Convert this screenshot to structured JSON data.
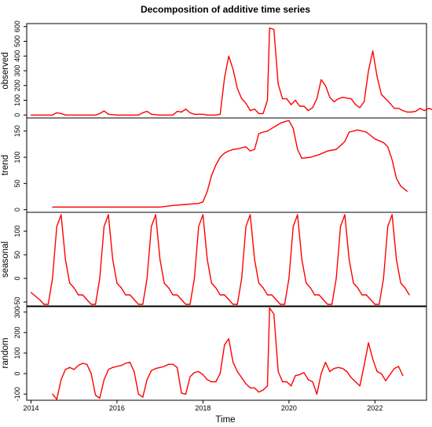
{
  "chart_data": {
    "type": "line",
    "title": "Decomposition of additive time series",
    "xlabel": "Time",
    "xlim": [
      2013.9,
      2023.2
    ],
    "xticks": [
      2014,
      2016,
      2018,
      2020,
      2022
    ],
    "panels": [
      {
        "name": "observed",
        "ylabel": "observed",
        "ylim": [
          -20,
          620
        ],
        "yticks": [
          0,
          100,
          200,
          300,
          400,
          500,
          600
        ],
        "points": [
          [
            2014.0,
            0
          ],
          [
            2014.5,
            0
          ],
          [
            2014.6,
            15
          ],
          [
            2014.7,
            10
          ],
          [
            2014.8,
            0
          ],
          [
            2015.0,
            0
          ],
          [
            2015.5,
            0
          ],
          [
            2015.6,
            10
          ],
          [
            2015.7,
            28
          ],
          [
            2015.8,
            5
          ],
          [
            2016.0,
            0
          ],
          [
            2016.5,
            0
          ],
          [
            2016.6,
            15
          ],
          [
            2016.7,
            25
          ],
          [
            2016.8,
            5
          ],
          [
            2017.0,
            0
          ],
          [
            2017.3,
            0
          ],
          [
            2017.4,
            25
          ],
          [
            2017.5,
            20
          ],
          [
            2017.6,
            40
          ],
          [
            2017.7,
            15
          ],
          [
            2017.8,
            5
          ],
          [
            2018.0,
            5
          ],
          [
            2018.1,
            0
          ],
          [
            2018.3,
            0
          ],
          [
            2018.4,
            5
          ],
          [
            2018.5,
            250
          ],
          [
            2018.6,
            400
          ],
          [
            2018.7,
            310
          ],
          [
            2018.8,
            180
          ],
          [
            2018.9,
            110
          ],
          [
            2019.0,
            80
          ],
          [
            2019.1,
            30
          ],
          [
            2019.2,
            40
          ],
          [
            2019.3,
            10
          ],
          [
            2019.4,
            10
          ],
          [
            2019.5,
            100
          ],
          [
            2019.55,
            590
          ],
          [
            2019.65,
            580
          ],
          [
            2019.75,
            210
          ],
          [
            2019.85,
            110
          ],
          [
            2019.95,
            110
          ],
          [
            2020.05,
            70
          ],
          [
            2020.15,
            100
          ],
          [
            2020.25,
            60
          ],
          [
            2020.35,
            60
          ],
          [
            2020.45,
            30
          ],
          [
            2020.55,
            50
          ],
          [
            2020.65,
            110
          ],
          [
            2020.75,
            240
          ],
          [
            2020.85,
            200
          ],
          [
            2020.95,
            120
          ],
          [
            2021.05,
            90
          ],
          [
            2021.15,
            110
          ],
          [
            2021.25,
            120
          ],
          [
            2021.35,
            115
          ],
          [
            2021.45,
            110
          ],
          [
            2021.55,
            70
          ],
          [
            2021.65,
            50
          ],
          [
            2021.75,
            90
          ],
          [
            2021.85,
            300
          ],
          [
            2021.95,
            435
          ],
          [
            2022.05,
            260
          ],
          [
            2022.15,
            140
          ],
          [
            2022.25,
            110
          ],
          [
            2022.35,
            80
          ],
          [
            2022.45,
            45
          ],
          [
            2022.55,
            45
          ],
          [
            2022.65,
            30
          ],
          [
            2022.75,
            20
          ],
          [
            2022.85,
            20
          ],
          [
            2022.95,
            25
          ],
          [
            2023.05,
            45
          ],
          [
            2023.15,
            30
          ],
          [
            2023.25,
            45
          ],
          [
            2023.35,
            35
          ],
          [
            2023.45,
            20
          ]
        ]
      },
      {
        "name": "trend",
        "ylabel": "trend",
        "ylim": [
          -5,
          175
        ],
        "yticks": [
          0,
          50,
          100,
          150
        ],
        "points": [
          [
            2014.5,
            5
          ],
          [
            2015.0,
            5
          ],
          [
            2015.5,
            5
          ],
          [
            2016.0,
            5
          ],
          [
            2016.5,
            5
          ],
          [
            2017.0,
            5
          ],
          [
            2017.3,
            8
          ],
          [
            2017.6,
            10
          ],
          [
            2017.9,
            12
          ],
          [
            2018.0,
            15
          ],
          [
            2018.1,
            35
          ],
          [
            2018.2,
            65
          ],
          [
            2018.3,
            85
          ],
          [
            2018.4,
            100
          ],
          [
            2018.5,
            108
          ],
          [
            2018.6,
            112
          ],
          [
            2018.7,
            115
          ],
          [
            2018.8,
            116
          ],
          [
            2018.9,
            118
          ],
          [
            2019.0,
            120
          ],
          [
            2019.1,
            112
          ],
          [
            2019.2,
            115
          ],
          [
            2019.3,
            145
          ],
          [
            2019.4,
            148
          ],
          [
            2019.5,
            150
          ],
          [
            2019.6,
            155
          ],
          [
            2019.7,
            160
          ],
          [
            2019.8,
            165
          ],
          [
            2019.9,
            168
          ],
          [
            2020.0,
            170
          ],
          [
            2020.1,
            155
          ],
          [
            2020.2,
            115
          ],
          [
            2020.3,
            98
          ],
          [
            2020.5,
            100
          ],
          [
            2020.7,
            105
          ],
          [
            2020.9,
            112
          ],
          [
            2021.1,
            115
          ],
          [
            2021.3,
            130
          ],
          [
            2021.4,
            148
          ],
          [
            2021.6,
            152
          ],
          [
            2021.8,
            148
          ],
          [
            2022.0,
            135
          ],
          [
            2022.2,
            128
          ],
          [
            2022.3,
            120
          ],
          [
            2022.4,
            95
          ],
          [
            2022.5,
            60
          ],
          [
            2022.6,
            45
          ],
          [
            2022.75,
            35
          ]
        ]
      },
      {
        "name": "seasonal",
        "ylabel": "seasonal",
        "ylim": [
          -60,
          140
        ],
        "yticks": [
          -50,
          0,
          50,
          100
        ],
        "points": [
          [
            2014.0,
            -30
          ],
          [
            2014.2,
            -45
          ],
          [
            2014.3,
            -55
          ],
          [
            2014.4,
            -55
          ],
          [
            2014.5,
            0
          ],
          [
            2014.6,
            110
          ],
          [
            2014.7,
            135
          ],
          [
            2014.8,
            40
          ],
          [
            2014.9,
            -10
          ],
          [
            2015.0,
            -20
          ],
          [
            2015.1,
            -35
          ],
          [
            2015.2,
            -35
          ],
          [
            2015.3,
            -45
          ],
          [
            2015.4,
            -55
          ],
          [
            2015.5,
            -55
          ],
          [
            2015.6,
            0
          ],
          [
            2015.7,
            110
          ],
          [
            2015.8,
            135
          ],
          [
            2015.9,
            40
          ],
          [
            2016.0,
            -10
          ],
          [
            2016.1,
            -20
          ],
          [
            2016.2,
            -35
          ],
          [
            2016.3,
            -35
          ],
          [
            2016.4,
            -45
          ],
          [
            2016.5,
            -55
          ],
          [
            2016.6,
            -55
          ],
          [
            2016.7,
            0
          ],
          [
            2016.8,
            110
          ],
          [
            2016.9,
            135
          ],
          [
            2017.0,
            40
          ],
          [
            2017.1,
            -10
          ],
          [
            2017.2,
            -20
          ],
          [
            2017.3,
            -35
          ],
          [
            2017.4,
            -35
          ],
          [
            2017.5,
            -45
          ],
          [
            2017.6,
            -55
          ],
          [
            2017.7,
            -55
          ],
          [
            2017.8,
            0
          ],
          [
            2017.9,
            110
          ],
          [
            2018.0,
            135
          ],
          [
            2018.1,
            40
          ],
          [
            2018.2,
            -10
          ],
          [
            2018.3,
            -20
          ],
          [
            2018.4,
            -35
          ],
          [
            2018.5,
            -35
          ],
          [
            2018.6,
            -45
          ],
          [
            2018.7,
            -55
          ],
          [
            2018.8,
            -55
          ],
          [
            2018.9,
            0
          ],
          [
            2019.0,
            110
          ],
          [
            2019.1,
            135
          ],
          [
            2019.2,
            40
          ],
          [
            2019.3,
            -10
          ],
          [
            2019.4,
            -20
          ],
          [
            2019.5,
            -35
          ],
          [
            2019.6,
            -35
          ],
          [
            2019.7,
            -45
          ],
          [
            2019.8,
            -55
          ],
          [
            2019.9,
            -55
          ],
          [
            2020.0,
            0
          ],
          [
            2020.1,
            110
          ],
          [
            2020.2,
            135
          ],
          [
            2020.3,
            40
          ],
          [
            2020.4,
            -10
          ],
          [
            2020.5,
            -20
          ],
          [
            2020.6,
            -35
          ],
          [
            2020.7,
            -35
          ],
          [
            2020.8,
            -45
          ],
          [
            2020.9,
            -55
          ],
          [
            2021.0,
            -55
          ],
          [
            2021.1,
            0
          ],
          [
            2021.2,
            110
          ],
          [
            2021.3,
            135
          ],
          [
            2021.4,
            40
          ],
          [
            2021.5,
            -10
          ],
          [
            2021.6,
            -20
          ],
          [
            2021.7,
            -35
          ],
          [
            2021.8,
            -35
          ],
          [
            2021.9,
            -45
          ],
          [
            2022.0,
            -55
          ],
          [
            2022.1,
            -55
          ],
          [
            2022.2,
            0
          ],
          [
            2022.3,
            110
          ],
          [
            2022.4,
            135
          ],
          [
            2022.5,
            40
          ],
          [
            2022.6,
            -10
          ],
          [
            2022.7,
            -20
          ],
          [
            2022.8,
            -35
          ]
        ]
      },
      {
        "name": "random",
        "ylabel": "random",
        "ylim": [
          -130,
          330
        ],
        "yticks": [
          -100,
          0,
          100,
          200,
          300
        ],
        "points": [
          [
            2014.5,
            -100
          ],
          [
            2014.6,
            -125
          ],
          [
            2014.7,
            -30
          ],
          [
            2014.8,
            20
          ],
          [
            2014.9,
            30
          ],
          [
            2015.0,
            20
          ],
          [
            2015.1,
            40
          ],
          [
            2015.2,
            50
          ],
          [
            2015.3,
            45
          ],
          [
            2015.4,
            0
          ],
          [
            2015.5,
            -105
          ],
          [
            2015.6,
            -120
          ],
          [
            2015.7,
            -30
          ],
          [
            2015.8,
            20
          ],
          [
            2015.9,
            30
          ],
          [
            2016.0,
            35
          ],
          [
            2016.1,
            40
          ],
          [
            2016.2,
            50
          ],
          [
            2016.3,
            55
          ],
          [
            2016.4,
            10
          ],
          [
            2016.5,
            -100
          ],
          [
            2016.6,
            -115
          ],
          [
            2016.7,
            -30
          ],
          [
            2016.8,
            15
          ],
          [
            2016.9,
            25
          ],
          [
            2017.0,
            30
          ],
          [
            2017.1,
            35
          ],
          [
            2017.2,
            45
          ],
          [
            2017.3,
            45
          ],
          [
            2017.4,
            30
          ],
          [
            2017.5,
            -95
          ],
          [
            2017.6,
            -100
          ],
          [
            2017.7,
            -15
          ],
          [
            2017.8,
            5
          ],
          [
            2017.9,
            10
          ],
          [
            2018.0,
            -5
          ],
          [
            2018.1,
            -30
          ],
          [
            2018.2,
            -40
          ],
          [
            2018.3,
            -40
          ],
          [
            2018.4,
            0
          ],
          [
            2018.5,
            140
          ],
          [
            2018.6,
            170
          ],
          [
            2018.7,
            55
          ],
          [
            2018.8,
            10
          ],
          [
            2018.9,
            -20
          ],
          [
            2019.0,
            -50
          ],
          [
            2019.1,
            -70
          ],
          [
            2019.2,
            -70
          ],
          [
            2019.3,
            -90
          ],
          [
            2019.4,
            -80
          ],
          [
            2019.5,
            -60
          ],
          [
            2019.55,
            320
          ],
          [
            2019.65,
            290
          ],
          [
            2019.75,
            10
          ],
          [
            2019.85,
            -40
          ],
          [
            2019.95,
            -40
          ],
          [
            2020.05,
            -60
          ],
          [
            2020.15,
            -10
          ],
          [
            2020.25,
            -5
          ],
          [
            2020.35,
            5
          ],
          [
            2020.45,
            -30
          ],
          [
            2020.55,
            -40
          ],
          [
            2020.65,
            -100
          ],
          [
            2020.75,
            0
          ],
          [
            2020.85,
            55
          ],
          [
            2020.95,
            10
          ],
          [
            2021.05,
            25
          ],
          [
            2021.15,
            30
          ],
          [
            2021.25,
            25
          ],
          [
            2021.35,
            10
          ],
          [
            2021.45,
            -20
          ],
          [
            2021.55,
            -40
          ],
          [
            2021.65,
            -60
          ],
          [
            2021.75,
            40
          ],
          [
            2021.85,
            150
          ],
          [
            2021.95,
            70
          ],
          [
            2022.05,
            10
          ],
          [
            2022.15,
            0
          ],
          [
            2022.25,
            -35
          ],
          [
            2022.35,
            -5
          ],
          [
            2022.45,
            25
          ],
          [
            2022.55,
            35
          ],
          [
            2022.65,
            -10
          ]
        ]
      }
    ]
  }
}
